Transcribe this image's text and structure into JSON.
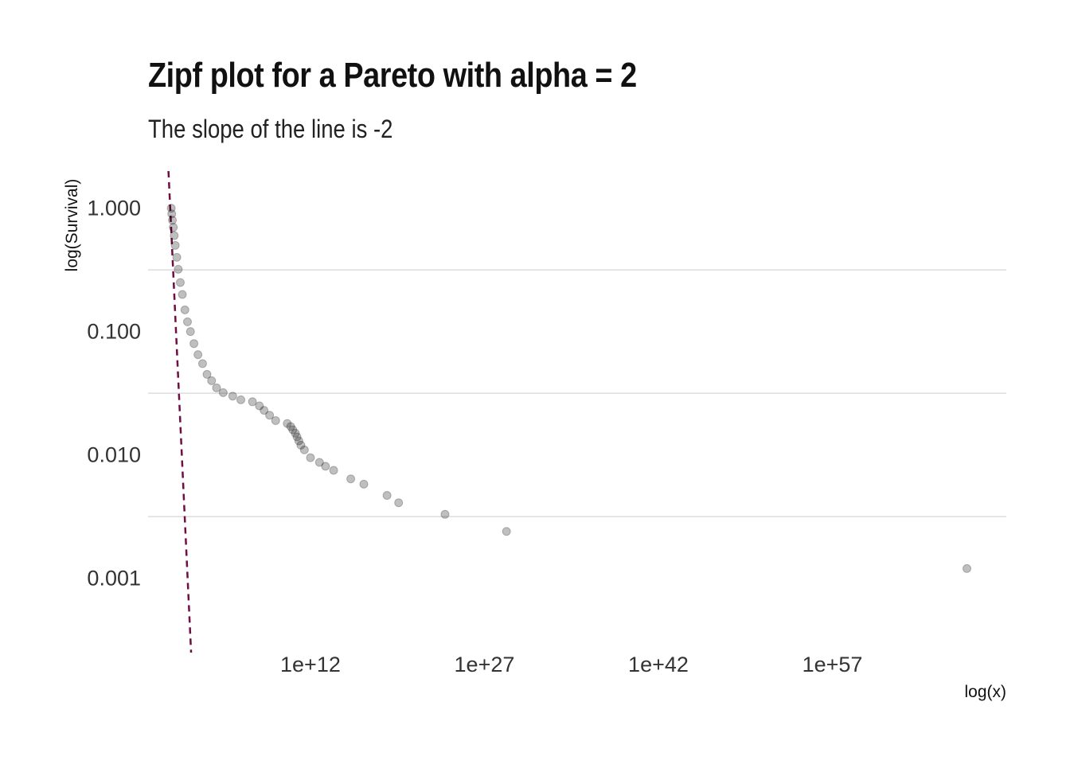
{
  "chart_data": {
    "type": "scatter",
    "title": "Zipf plot for a Pareto with alpha = 2",
    "subtitle": "The slope of the line is -2",
    "xlabel": "log(x)",
    "ylabel": "log(Survival)",
    "x_scale": "log10",
    "y_scale": "log10",
    "xlim": [
      0.01,
      1e+72
    ],
    "ylim": [
      0.00025,
      2
    ],
    "x_ticks": [
      {
        "value": 1000000000000.0,
        "label": "1e+12"
      },
      {
        "value": 1e+27,
        "label": "1e+27"
      },
      {
        "value": 1e+42,
        "label": "1e+42"
      },
      {
        "value": 1e+57,
        "label": "1e+57"
      }
    ],
    "y_ticks": [
      {
        "value": 1,
        "label": "1.000"
      },
      {
        "value": 0.1,
        "label": "0.100"
      },
      {
        "value": 0.01,
        "label": "0.010"
      },
      {
        "value": 0.001,
        "label": "0.001"
      }
    ],
    "grid": true,
    "legend": "none",
    "points": [
      {
        "x": 1.0,
        "y": 1.0
      },
      {
        "x": 1.1,
        "y": 0.9
      },
      {
        "x": 1.25,
        "y": 0.8
      },
      {
        "x": 1.5,
        "y": 0.7
      },
      {
        "x": 1.8,
        "y": 0.6
      },
      {
        "x": 2.2,
        "y": 0.5
      },
      {
        "x": 3.0,
        "y": 0.4
      },
      {
        "x": 4.0,
        "y": 0.32
      },
      {
        "x": 6.0,
        "y": 0.25
      },
      {
        "x": 9.0,
        "y": 0.2
      },
      {
        "x": 15,
        "y": 0.15
      },
      {
        "x": 25,
        "y": 0.12
      },
      {
        "x": 45,
        "y": 0.1
      },
      {
        "x": 90,
        "y": 0.08
      },
      {
        "x": 200,
        "y": 0.065
      },
      {
        "x": 500,
        "y": 0.055
      },
      {
        "x": 1200,
        "y": 0.045
      },
      {
        "x": 3000,
        "y": 0.04
      },
      {
        "x": 8000,
        "y": 0.035
      },
      {
        "x": 30000,
        "y": 0.032
      },
      {
        "x": 200000,
        "y": 0.03
      },
      {
        "x": 1000000,
        "y": 0.028
      },
      {
        "x": 10000000,
        "y": 0.027
      },
      {
        "x": 40000000,
        "y": 0.025
      },
      {
        "x": 100000000,
        "y": 0.023
      },
      {
        "x": 300000000,
        "y": 0.021
      },
      {
        "x": 1000000000,
        "y": 0.019
      },
      {
        "x": 10000000000,
        "y": 0.018
      },
      {
        "x": 20000000000,
        "y": 0.017
      },
      {
        "x": 30000000000,
        "y": 0.016
      },
      {
        "x": 50000000000,
        "y": 0.015
      },
      {
        "x": 70000000000,
        "y": 0.014
      },
      {
        "x": 100000000000,
        "y": 0.013
      },
      {
        "x": 150000000000,
        "y": 0.012
      },
      {
        "x": 300000000000,
        "y": 0.011
      },
      {
        "x": 1000000000000.0,
        "y": 0.0095
      },
      {
        "x": 6000000000000.0,
        "y": 0.0087
      },
      {
        "x": 20000000000000.0,
        "y": 0.0081
      },
      {
        "x": 100000000000000.0,
        "y": 0.0075
      },
      {
        "x": 3000000000000000.0,
        "y": 0.0064
      },
      {
        "x": 4e+16,
        "y": 0.0058
      },
      {
        "x": 4e+18,
        "y": 0.0047
      },
      {
        "x": 4e+19,
        "y": 0.0041
      },
      {
        "x": 4e+23,
        "y": 0.0033
      },
      {
        "x": 8e+28,
        "y": 0.0024
      },
      {
        "x": 4e+68,
        "y": 0.0012
      }
    ],
    "reference_line": {
      "slope": -2,
      "style": "dashed",
      "color": "#6e0e45"
    },
    "point_color": "#000000"
  }
}
